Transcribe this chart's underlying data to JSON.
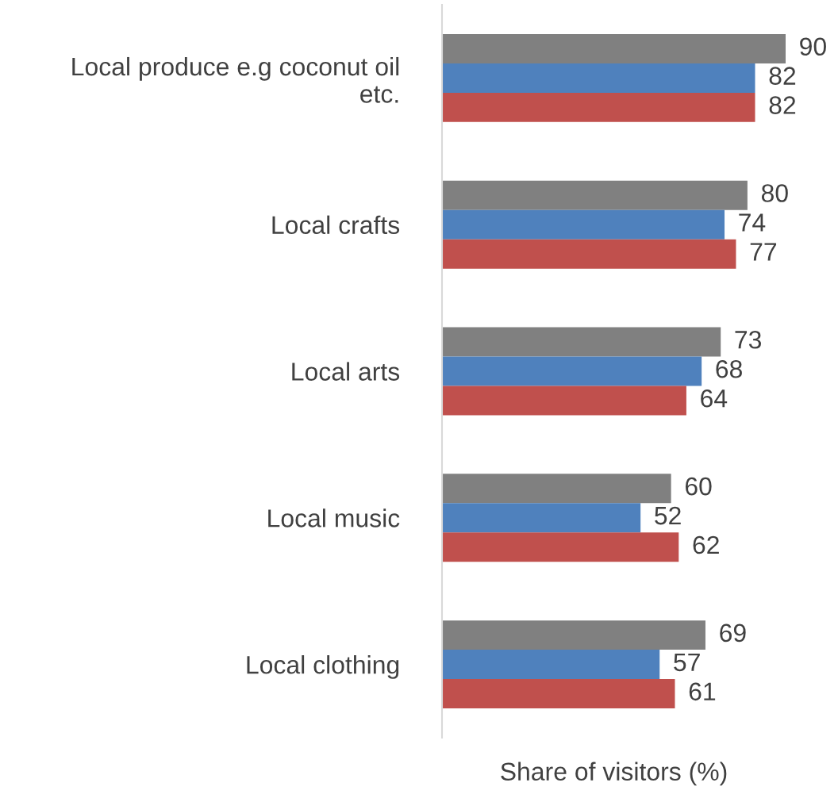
{
  "chart_data": {
    "type": "bar",
    "orientation": "horizontal",
    "xlabel": "Share of visitors (%)",
    "categories": [
      "Local produce e.g coconut oil\netc.",
      "Local crafts",
      "Local arts",
      "Local music",
      "Local clothing"
    ],
    "series": [
      {
        "color": "#808080",
        "values": [
          90,
          80,
          73,
          60,
          69
        ]
      },
      {
        "color": "#4f81bd",
        "values": [
          82,
          74,
          68,
          52,
          57
        ]
      },
      {
        "color": "#c0504d",
        "values": [
          82,
          77,
          64,
          62,
          61
        ]
      }
    ],
    "data_labels": true,
    "grid": false,
    "tick_labels": "y"
  }
}
